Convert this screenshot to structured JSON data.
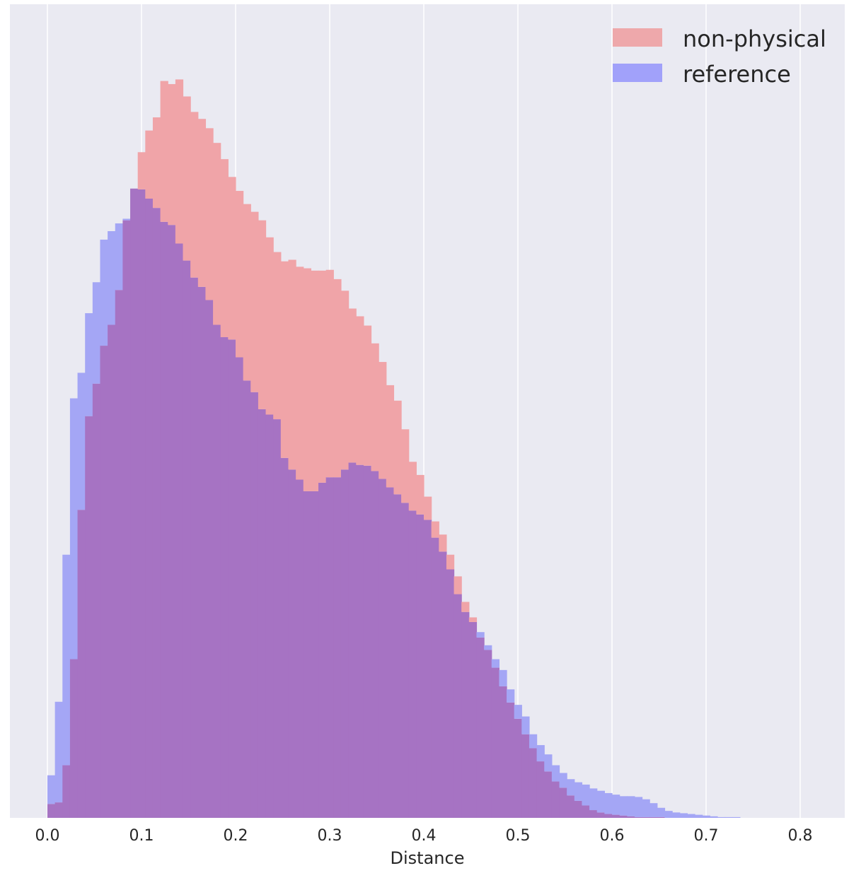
{
  "chart_data": {
    "type": "histogram",
    "title": "",
    "xlabel": "Distance",
    "ylabel": "",
    "xlim": [
      -0.04,
      0.85
    ],
    "ylim": [
      0,
      1.0
    ],
    "grid": "vertical",
    "legend_position": "top-right",
    "xticks": [
      "0.0",
      "0.1",
      "0.2",
      "0.3",
      "0.4",
      "0.5",
      "0.6",
      "0.7",
      "0.8"
    ],
    "bin_width": 0.008,
    "x": [
      0.0,
      0.008,
      0.016,
      0.024,
      0.032,
      0.04,
      0.048,
      0.056,
      0.064,
      0.072,
      0.08,
      0.088,
      0.096,
      0.104,
      0.112,
      0.12,
      0.128,
      0.136,
      0.144,
      0.152,
      0.16,
      0.168,
      0.176,
      0.184,
      0.192,
      0.2,
      0.208,
      0.216,
      0.224,
      0.232,
      0.24,
      0.248,
      0.256,
      0.264,
      0.272,
      0.28,
      0.288,
      0.296,
      0.304,
      0.312,
      0.32,
      0.328,
      0.336,
      0.344,
      0.352,
      0.36,
      0.368,
      0.376,
      0.384,
      0.392,
      0.4,
      0.408,
      0.416,
      0.424,
      0.432,
      0.44,
      0.448,
      0.456,
      0.464,
      0.472,
      0.48,
      0.488,
      0.496,
      0.504,
      0.512,
      0.52,
      0.528,
      0.536,
      0.544,
      0.552,
      0.56,
      0.568,
      0.576,
      0.584,
      0.592,
      0.6,
      0.608,
      0.616,
      0.624,
      0.632,
      0.64,
      0.648,
      0.656,
      0.664,
      0.672,
      0.68,
      0.688,
      0.696,
      0.704,
      0.712,
      0.72,
      0.728,
      0.736,
      0.744,
      0.752,
      0.76,
      0.768,
      0.776,
      0.784,
      0.792,
      0.8,
      0.808
    ],
    "series": [
      {
        "name": "non-physical",
        "color": "#f08080",
        "values": [
          0.018,
          0.02,
          0.068,
          0.205,
          0.398,
          0.519,
          0.561,
          0.61,
          0.637,
          0.682,
          0.772,
          0.813,
          0.86,
          0.888,
          0.905,
          0.952,
          0.948,
          0.954,
          0.932,
          0.912,
          0.903,
          0.891,
          0.872,
          0.851,
          0.828,
          0.81,
          0.793,
          0.783,
          0.772,
          0.75,
          0.731,
          0.719,
          0.721,
          0.712,
          0.71,
          0.707,
          0.707,
          0.708,
          0.696,
          0.681,
          0.658,
          0.648,
          0.636,
          0.613,
          0.589,
          0.559,
          0.539,
          0.502,
          0.46,
          0.443,
          0.415,
          0.383,
          0.366,
          0.34,
          0.312,
          0.279,
          0.259,
          0.233,
          0.217,
          0.194,
          0.17,
          0.149,
          0.128,
          0.108,
          0.09,
          0.073,
          0.06,
          0.047,
          0.039,
          0.029,
          0.022,
          0.016,
          0.01,
          0.007,
          0.005,
          0.004,
          0.003,
          0.002,
          0.001,
          0.001,
          0.001,
          0.001,
          0.0,
          0.0,
          0.0,
          0.0,
          0.0,
          0.0,
          0.0,
          0.0,
          0.0,
          0.0,
          0.0,
          0.0,
          0.0,
          0.0,
          0.0,
          0.0,
          0.0,
          0.0,
          0.0,
          0.0
        ]
      },
      {
        "name": "reference",
        "color": "#6c6cff",
        "values": [
          0.055,
          0.15,
          0.34,
          0.542,
          0.575,
          0.652,
          0.692,
          0.747,
          0.758,
          0.768,
          0.774,
          0.813,
          0.812,
          0.8,
          0.788,
          0.77,
          0.766,
          0.742,
          0.72,
          0.698,
          0.686,
          0.669,
          0.637,
          0.621,
          0.618,
          0.595,
          0.565,
          0.55,
          0.528,
          0.521,
          0.515,
          0.465,
          0.45,
          0.437,
          0.422,
          0.422,
          0.433,
          0.44,
          0.44,
          0.45,
          0.459,
          0.456,
          0.455,
          0.448,
          0.438,
          0.427,
          0.418,
          0.407,
          0.397,
          0.392,
          0.385,
          0.362,
          0.344,
          0.321,
          0.289,
          0.266,
          0.253,
          0.24,
          0.223,
          0.205,
          0.191,
          0.166,
          0.146,
          0.131,
          0.108,
          0.094,
          0.082,
          0.068,
          0.058,
          0.05,
          0.046,
          0.043,
          0.038,
          0.035,
          0.032,
          0.03,
          0.028,
          0.028,
          0.027,
          0.024,
          0.019,
          0.013,
          0.009,
          0.007,
          0.006,
          0.005,
          0.004,
          0.003,
          0.002,
          0.001,
          0.001,
          0.001,
          0.0,
          0.0,
          0.0,
          0.0,
          0.0,
          0.0,
          0.0,
          0.0,
          0.0,
          0.0
        ]
      }
    ],
    "overlap_color": "#a673c3"
  }
}
